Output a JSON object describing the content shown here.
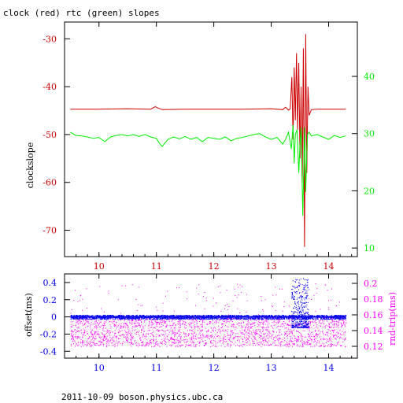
{
  "title": "clock (red) rtc (green) slopes",
  "footer": "2011-10-09  boson.physics.ubc.ca",
  "colors": {
    "red": "#cc0000",
    "green": "#00ee00",
    "blue": "#0000ee",
    "magenta": "#ff00ff",
    "frame": "#000000"
  },
  "chart_data": [
    {
      "type": "line",
      "title": "clock (red) rtc (green) slopes",
      "ylabel": "clockslope",
      "xlim": [
        9.4,
        14.5
      ],
      "ylim": [
        -75.5,
        -26.5
      ],
      "y2lim": [
        8.5,
        49.5
      ],
      "x_ticks": [
        "10",
        "11",
        "12",
        "13",
        "14"
      ],
      "y_ticks": [
        "-30",
        "-40",
        "-50",
        "-60",
        "-70"
      ],
      "y_tick_values": [
        -30,
        -40,
        -50,
        -60,
        -70
      ],
      "y2_ticks": [
        "40",
        "30",
        "20",
        "10"
      ],
      "y2_tick_values": [
        40,
        30,
        20,
        10
      ],
      "series": [
        {
          "color": "red",
          "axis": "left",
          "x": [
            9.5,
            10.0,
            10.5,
            10.9,
            10.98,
            11.02,
            11.1,
            11.5,
            12.0,
            12.5,
            13.0,
            13.2,
            13.25,
            13.3,
            13.33,
            13.36,
            13.38,
            13.4,
            13.42,
            13.44,
            13.46,
            13.48,
            13.5,
            13.52,
            13.54,
            13.56,
            13.58,
            13.6,
            13.62,
            13.64,
            13.66,
            13.7,
            13.8,
            14.0,
            14.3
          ],
          "y": [
            -44.7,
            -44.7,
            -44.6,
            -44.7,
            -44.2,
            -44.4,
            -44.8,
            -44.7,
            -44.7,
            -44.7,
            -44.6,
            -44.8,
            -44.3,
            -44.9,
            -44.6,
            -38.0,
            -51.0,
            -36.0,
            -47.0,
            -33.0,
            -49.0,
            -35.0,
            -55.0,
            -40.0,
            -60.0,
            -32.0,
            -73.5,
            -29.0,
            -58.0,
            -40.0,
            -46.0,
            -44.8,
            -44.7,
            -44.7,
            -44.7
          ]
        },
        {
          "color": "green",
          "axis": "left",
          "x": [
            9.5,
            9.6,
            9.7,
            9.8,
            9.9,
            10.0,
            10.1,
            10.2,
            10.3,
            10.4,
            10.5,
            10.6,
            10.7,
            10.8,
            10.9,
            11.0,
            11.05,
            11.1,
            11.2,
            11.3,
            11.4,
            11.5,
            11.6,
            11.7,
            11.8,
            11.9,
            12.0,
            12.1,
            12.2,
            12.3,
            12.4,
            12.5,
            12.6,
            12.7,
            12.8,
            12.9,
            13.0,
            13.1,
            13.2,
            13.25,
            13.3,
            13.35,
            13.38,
            13.4,
            13.42,
            13.45,
            13.48,
            13.5,
            13.52,
            13.55,
            13.58,
            13.6,
            13.63,
            13.66,
            13.7,
            13.8,
            13.9,
            14.0,
            14.1,
            14.2,
            14.3
          ],
          "y": [
            -49.5,
            -50.2,
            -50.3,
            -50.5,
            -50.8,
            -50.6,
            -51.5,
            -50.5,
            -50.2,
            -50.0,
            -50.3,
            -50.0,
            -50.4,
            -50.0,
            -50.5,
            -50.8,
            -51.8,
            -52.5,
            -51.0,
            -50.5,
            -50.9,
            -50.4,
            -51.0,
            -50.6,
            -51.5,
            -50.6,
            -50.8,
            -51.0,
            -50.5,
            -51.3,
            -50.8,
            -50.6,
            -50.3,
            -50.0,
            -49.8,
            -50.5,
            -51.0,
            -50.6,
            -52.0,
            -51.0,
            -49.5,
            -53.0,
            -48.0,
            -56.0,
            -50.0,
            -49.0,
            -58.0,
            -52.0,
            -48.5,
            -67.0,
            -48.5,
            -62.0,
            -50.0,
            -49.5,
            -50.3,
            -50.0,
            -50.5,
            -51.0,
            -50.2,
            -50.6,
            -50.3
          ]
        }
      ]
    },
    {
      "type": "scatter",
      "ylabel": "offset(ms)",
      "y2label": "rnd-trip(ms)",
      "xlim": [
        9.4,
        14.5
      ],
      "ylim": [
        -0.48,
        0.5
      ],
      "y2lim": [
        0.105,
        0.212
      ],
      "x_ticks": [
        "10",
        "11",
        "12",
        "13",
        "14"
      ],
      "y_ticks": [
        "0.4",
        "0.2",
        "0",
        "-0.2",
        "-0.4"
      ],
      "y_tick_values": [
        0.4,
        0.2,
        0,
        -0.2,
        -0.4
      ],
      "y2_ticks": [
        "0.2",
        "0.18",
        "0.16",
        "0.14",
        "0.12"
      ],
      "y2_tick_values": [
        0.2,
        0.18,
        0.16,
        0.14,
        0.12
      ],
      "series": [
        {
          "color": "magenta",
          "axis": "right",
          "x_range": [
            9.5,
            14.3
          ],
          "y_band": [
            0.12,
            0.158
          ],
          "y_outliers": [
            0.16,
            0.2
          ]
        },
        {
          "color": "blue",
          "axis": "left",
          "x_range": [
            9.5,
            14.3
          ],
          "y_center": 0.0,
          "y_spread": 0.025,
          "burst_x": [
            13.35,
            13.65
          ],
          "burst_y": [
            -0.12,
            0.45
          ]
        }
      ]
    }
  ]
}
